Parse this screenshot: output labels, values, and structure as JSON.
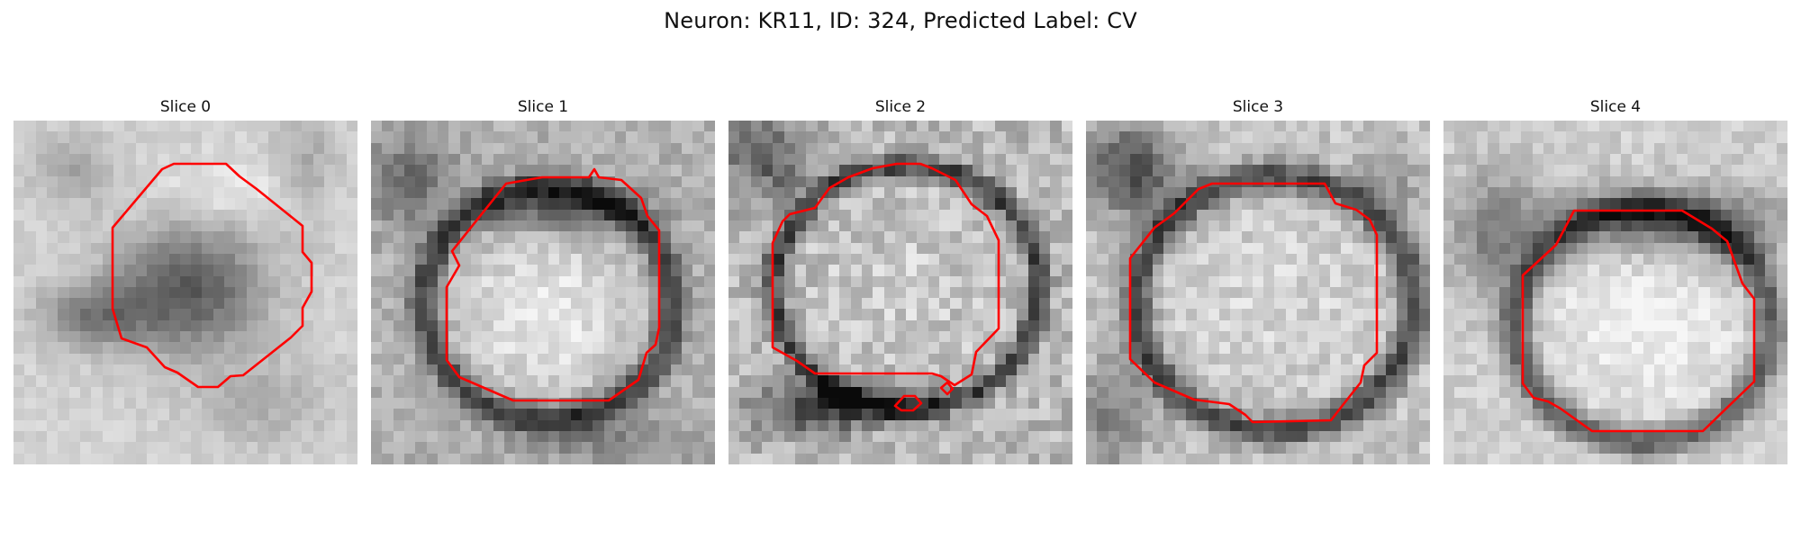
{
  "figure": {
    "title": "Neuron: KR11, ID: 324, Predicted Label: CV",
    "contour_color": "#ff0000"
  },
  "panels": [
    {
      "title": "Slice 0",
      "image_description": "grayscale microscopy slice with dark irregular neuron body outlined in red"
    },
    {
      "title": "Slice 1",
      "image_description": "grayscale microscopy slice with bright rounded neuron body and dark rim outlined in red"
    },
    {
      "title": "Slice 2",
      "image_description": "grayscale microscopy slice with bright textured neuron body, dark ring and two small red contours below"
    },
    {
      "title": "Slice 3",
      "image_description": "grayscale microscopy slice with bright rounded neuron body and dark ring outlined in red"
    },
    {
      "title": "Slice 4",
      "image_description": "grayscale microscopy slice with bright neuron body under dark upper band outlined in red"
    }
  ]
}
